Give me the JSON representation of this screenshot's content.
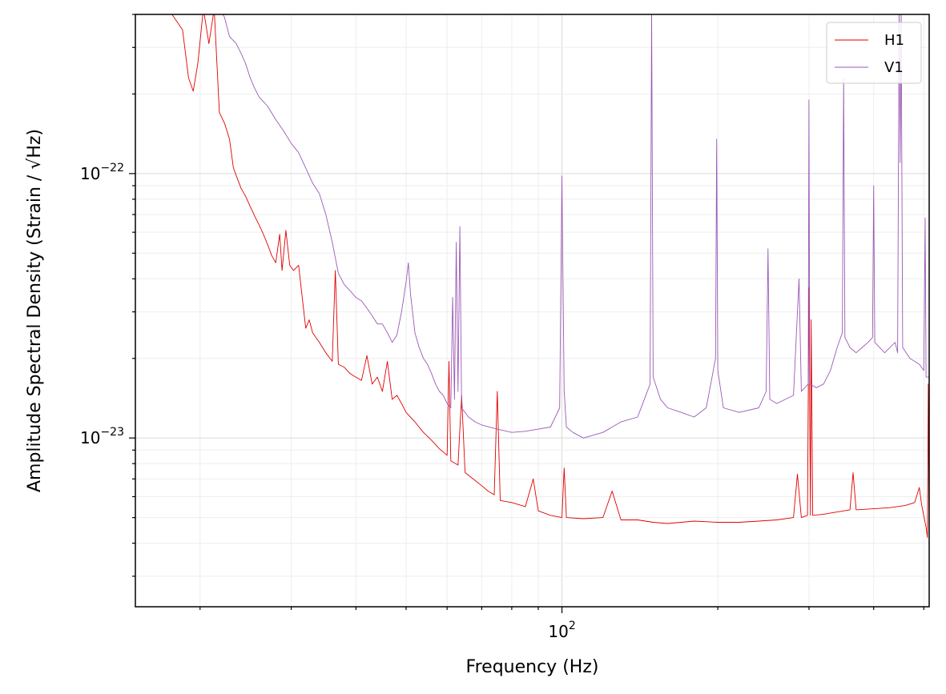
{
  "chart_data": {
    "type": "line",
    "title": "",
    "xlabel": "Frequency (Hz)",
    "ylabel": "Amplitude Spectral Density (Strain / √Hz)",
    "xscale": "log",
    "yscale": "log",
    "xlim": [
      15,
      512
    ],
    "ylim": [
      2.3e-24,
      4e-22
    ],
    "grid": true,
    "legend_position": "top-right",
    "x_tick_labels": [
      {
        "value": 100,
        "base": "10",
        "exp": "2"
      }
    ],
    "y_tick_labels": [
      {
        "value": 1e-22,
        "base": "10",
        "exp": "−22"
      },
      {
        "value": 1e-23,
        "base": "10",
        "exp": "−23"
      }
    ],
    "series": [
      {
        "name": "H1",
        "color": "#e00000",
        "points": [
          [
            17.5,
            4.1e-22
          ],
          [
            18.5,
            3.5e-22
          ],
          [
            19.0,
            2.3e-22
          ],
          [
            19.4,
            2.05e-22
          ],
          [
            19.8,
            2.6e-22
          ],
          [
            20.3,
            4.2e-22
          ],
          [
            20.8,
            3.1e-22
          ],
          [
            21.3,
            4.2e-22
          ],
          [
            21.8,
            1.7e-22
          ],
          [
            22.3,
            1.55e-22
          ],
          [
            22.8,
            1.35e-22
          ],
          [
            23.2,
            1.05e-22
          ],
          [
            23.6,
            9.6e-23
          ],
          [
            24.0,
            8.8e-23
          ],
          [
            24.5,
            8.2e-23
          ],
          [
            25.0,
            7.5e-23
          ],
          [
            25.5,
            6.9e-23
          ],
          [
            26.0,
            6.4e-23
          ],
          [
            26.5,
            5.9e-23
          ],
          [
            27.0,
            5.4e-23
          ],
          [
            27.5,
            4.9e-23
          ],
          [
            28.0,
            4.6e-23
          ],
          [
            28.5,
            5.9e-23
          ],
          [
            28.8,
            4.3e-23
          ],
          [
            29.3,
            6.1e-23
          ],
          [
            29.8,
            4.5e-23
          ],
          [
            30.3,
            4.3e-23
          ],
          [
            31.0,
            4.5e-23
          ],
          [
            31.5,
            3.4e-23
          ],
          [
            32.0,
            2.6e-23
          ],
          [
            32.5,
            2.8e-23
          ],
          [
            33.0,
            2.5e-23
          ],
          [
            34.0,
            2.3e-23
          ],
          [
            35.0,
            2.1e-23
          ],
          [
            36.0,
            1.95e-23
          ],
          [
            36.5,
            4.3e-23
          ],
          [
            37.0,
            1.9e-23
          ],
          [
            38.0,
            1.85e-23
          ],
          [
            39.0,
            1.75e-23
          ],
          [
            40.0,
            1.7e-23
          ],
          [
            41.0,
            1.65e-23
          ],
          [
            42.0,
            2.05e-23
          ],
          [
            43.0,
            1.6e-23
          ],
          [
            44.0,
            1.7e-23
          ],
          [
            45.0,
            1.5e-23
          ],
          [
            46.0,
            1.95e-23
          ],
          [
            47.0,
            1.4e-23
          ],
          [
            48.0,
            1.45e-23
          ],
          [
            49.0,
            1.35e-23
          ],
          [
            50.0,
            1.25e-23
          ],
          [
            52.0,
            1.15e-23
          ],
          [
            54.0,
            1.05e-23
          ],
          [
            56.0,
            9.8e-24
          ],
          [
            58.0,
            9.1e-24
          ],
          [
            60.0,
            8.6e-24
          ],
          [
            60.5,
            1.95e-23
          ],
          [
            61.0,
            8.2e-24
          ],
          [
            63.0,
            7.9e-24
          ],
          [
            64.0,
            1.45e-23
          ],
          [
            65.0,
            7.4e-24
          ],
          [
            68.0,
            6.9e-24
          ],
          [
            70.0,
            6.6e-24
          ],
          [
            72.0,
            6.3e-24
          ],
          [
            74.0,
            6.1e-24
          ],
          [
            75.0,
            1.5e-23
          ],
          [
            76.0,
            5.8e-24
          ],
          [
            80.0,
            5.7e-24
          ],
          [
            85.0,
            5.5e-24
          ],
          [
            88.0,
            7e-24
          ],
          [
            90.0,
            5.3e-24
          ],
          [
            95.0,
            5.1e-24
          ],
          [
            100.0,
            5e-24
          ],
          [
            101.0,
            7.7e-24
          ],
          [
            102.0,
            5e-24
          ],
          [
            110.0,
            4.95e-24
          ],
          [
            120.0,
            5e-24
          ],
          [
            125.0,
            6.3e-24
          ],
          [
            130.0,
            4.9e-24
          ],
          [
            140.0,
            4.9e-24
          ],
          [
            150.0,
            4.8e-24
          ],
          [
            160.0,
            4.75e-24
          ],
          [
            170.0,
            4.8e-24
          ],
          [
            180.0,
            4.85e-24
          ],
          [
            200.0,
            4.8e-24
          ],
          [
            220.0,
            4.8e-24
          ],
          [
            240.0,
            4.85e-24
          ],
          [
            260.0,
            4.9e-24
          ],
          [
            280.0,
            5e-24
          ],
          [
            285.0,
            7.3e-24
          ],
          [
            290.0,
            5e-24
          ],
          [
            298.0,
            5.1e-24
          ],
          [
            300.0,
            3.7e-23
          ],
          [
            302.0,
            5.1e-24
          ],
          [
            303.0,
            2.8e-23
          ],
          [
            305.0,
            5.1e-24
          ],
          [
            320.0,
            5.15e-24
          ],
          [
            340.0,
            5.25e-24
          ],
          [
            360.0,
            5.35e-24
          ],
          [
            365.0,
            7.4e-24
          ],
          [
            370.0,
            5.35e-24
          ],
          [
            400.0,
            5.4e-24
          ],
          [
            430.0,
            5.45e-24
          ],
          [
            460.0,
            5.55e-24
          ],
          [
            480.0,
            5.7e-24
          ],
          [
            490.0,
            6.5e-24
          ],
          [
            495.0,
            5.6e-24
          ],
          [
            505.0,
            4.6e-24
          ],
          [
            508.0,
            4.2e-24
          ],
          [
            510.0,
            1.6e-23
          ],
          [
            512.0,
            4.1e-24
          ]
        ]
      },
      {
        "name": "V1",
        "color": "#9b59b6",
        "points": [
          [
            21.8,
            4.2e-22
          ],
          [
            22.3,
            3.9e-22
          ],
          [
            22.8,
            3.3e-22
          ],
          [
            23.5,
            3.1e-22
          ],
          [
            24.0,
            2.85e-22
          ],
          [
            24.5,
            2.6e-22
          ],
          [
            25.0,
            2.3e-22
          ],
          [
            25.5,
            2.1e-22
          ],
          [
            26.0,
            1.95e-22
          ],
          [
            27.0,
            1.8e-22
          ],
          [
            28.0,
            1.6e-22
          ],
          [
            29.0,
            1.45e-22
          ],
          [
            30.0,
            1.3e-22
          ],
          [
            31.0,
            1.2e-22
          ],
          [
            32.0,
            1.05e-22
          ],
          [
            33.0,
            9.2e-23
          ],
          [
            34.0,
            8.4e-23
          ],
          [
            35.0,
            7e-23
          ],
          [
            36.0,
            5.5e-23
          ],
          [
            37.0,
            4.2e-23
          ],
          [
            38.0,
            3.8e-23
          ],
          [
            39.0,
            3.6e-23
          ],
          [
            40.0,
            3.4e-23
          ],
          [
            41.0,
            3.3e-23
          ],
          [
            42.0,
            3.1e-23
          ],
          [
            43.0,
            2.9e-23
          ],
          [
            44.0,
            2.7e-23
          ],
          [
            45.0,
            2.7e-23
          ],
          [
            46.0,
            2.5e-23
          ],
          [
            47.0,
            2.3e-23
          ],
          [
            48.0,
            2.45e-23
          ],
          [
            49.0,
            3e-23
          ],
          [
            50.0,
            3.9e-23
          ],
          [
            50.5,
            4.6e-23
          ],
          [
            51.0,
            3.5e-23
          ],
          [
            52.0,
            2.5e-23
          ],
          [
            53.0,
            2.2e-23
          ],
          [
            54.0,
            2e-23
          ],
          [
            55.0,
            1.9e-23
          ],
          [
            56.0,
            1.75e-23
          ],
          [
            57.0,
            1.6e-23
          ],
          [
            58.0,
            1.5e-23
          ],
          [
            59.0,
            1.45e-23
          ],
          [
            60.0,
            1.35e-23
          ],
          [
            61.0,
            1.3e-23
          ],
          [
            61.5,
            3.4e-23
          ],
          [
            62.0,
            1.4e-23
          ],
          [
            62.5,
            5.5e-23
          ],
          [
            63.0,
            1.5e-23
          ],
          [
            63.5,
            6.3e-23
          ],
          [
            64.0,
            1.3e-23
          ],
          [
            66.0,
            1.2e-23
          ],
          [
            68.0,
            1.15e-23
          ],
          [
            70.0,
            1.12e-23
          ],
          [
            75.0,
            1.08e-23
          ],
          [
            80.0,
            1.05e-23
          ],
          [
            85.0,
            1.06e-23
          ],
          [
            90.0,
            1.08e-23
          ],
          [
            95.0,
            1.1e-23
          ],
          [
            99.0,
            1.3e-23
          ],
          [
            100.0,
            9.8e-23
          ],
          [
            101.0,
            1.5e-23
          ],
          [
            102.0,
            1.1e-23
          ],
          [
            105.0,
            1.05e-23
          ],
          [
            110.0,
            1e-23
          ],
          [
            120.0,
            1.05e-23
          ],
          [
            130.0,
            1.15e-23
          ],
          [
            140.0,
            1.2e-23
          ],
          [
            148.0,
            1.6e-23
          ],
          [
            149.0,
            4.2e-22
          ],
          [
            150.0,
            1.7e-23
          ],
          [
            155.0,
            1.4e-23
          ],
          [
            160.0,
            1.3e-23
          ],
          [
            170.0,
            1.25e-23
          ],
          [
            180.0,
            1.2e-23
          ],
          [
            190.0,
            1.3e-23
          ],
          [
            198.0,
            2e-23
          ],
          [
            199.0,
            1.35e-22
          ],
          [
            200.0,
            1.8e-23
          ],
          [
            205.0,
            1.3e-23
          ],
          [
            220.0,
            1.25e-23
          ],
          [
            240.0,
            1.3e-23
          ],
          [
            248.0,
            1.5e-23
          ],
          [
            250.0,
            5.2e-23
          ],
          [
            252.0,
            1.4e-23
          ],
          [
            260.0,
            1.35e-23
          ],
          [
            270.0,
            1.4e-23
          ],
          [
            280.0,
            1.45e-23
          ],
          [
            287.0,
            4e-23
          ],
          [
            290.0,
            1.5e-23
          ],
          [
            299.0,
            1.6e-23
          ],
          [
            300.0,
            1.9e-22
          ],
          [
            301.0,
            1.6e-23
          ],
          [
            310.0,
            1.55e-23
          ],
          [
            320.0,
            1.6e-23
          ],
          [
            330.0,
            1.8e-23
          ],
          [
            340.0,
            2.2e-23
          ],
          [
            348.0,
            2.5e-23
          ],
          [
            350.0,
            2.3e-22
          ],
          [
            352.0,
            2.4e-23
          ],
          [
            360.0,
            2.2e-23
          ],
          [
            370.0,
            2.1e-23
          ],
          [
            380.0,
            2.2e-23
          ],
          [
            390.0,
            2.3e-23
          ],
          [
            398.0,
            2.4e-23
          ],
          [
            400.0,
            9e-23
          ],
          [
            402.0,
            2.3e-23
          ],
          [
            420.0,
            2.1e-23
          ],
          [
            440.0,
            2.3e-23
          ],
          [
            445.0,
            2.1e-23
          ],
          [
            448.0,
            4.2e-22
          ],
          [
            450.0,
            1.1e-22
          ],
          [
            452.0,
            4.2e-22
          ],
          [
            455.0,
            2.2e-23
          ],
          [
            470.0,
            2e-23
          ],
          [
            490.0,
            1.9e-23
          ],
          [
            500.0,
            1.8e-23
          ],
          [
            503.0,
            6.8e-23
          ],
          [
            505.0,
            1.7e-23
          ],
          [
            512.0,
            1.7e-23
          ]
        ]
      }
    ]
  }
}
